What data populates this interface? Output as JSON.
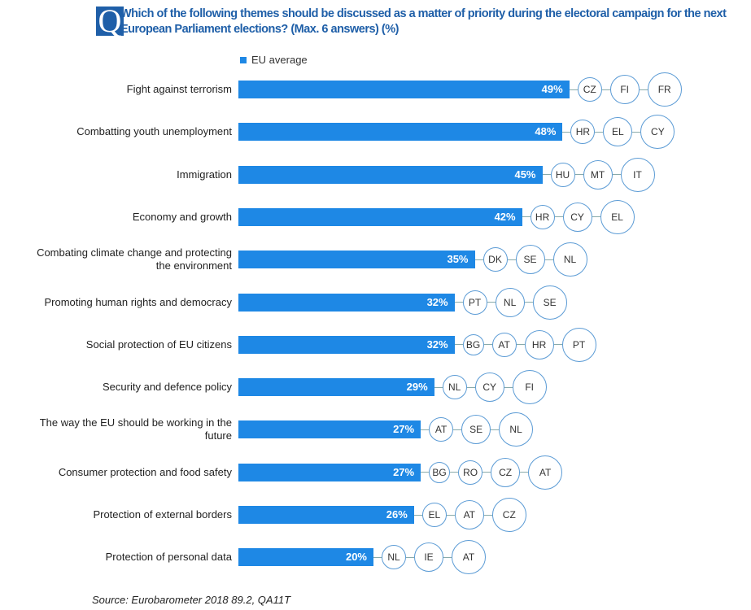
{
  "header": {
    "q_badge": "Q",
    "title": "Which of the following themes should be discussed as a matter of priority during the electoral campaign for the next European Parliament elections? (Max. 6 answers) (%)"
  },
  "source": "Source: Eurobarometer 2018 89.2, QA11T",
  "chart_data": {
    "type": "bar",
    "title": "Which of the following themes should be discussed as a matter of priority during the electoral campaign for the next European Parliament elections? (Max. 6 answers) (%)",
    "legend": [
      "EU average"
    ],
    "legend_placement": "top",
    "bar_color": "#1e88e5",
    "categories": [
      "Fight against terrorism",
      "Combatting youth unemployment",
      "Immigration",
      "Economy and growth",
      "Combating climate change and protecting the environment",
      "Promoting human rights and democracy",
      "Social protection of EU citizens",
      "Security and defence policy",
      "The way the EU should be working in the future",
      "Consumer protection and food safety",
      "Protection of external borders",
      "Protection of personal data"
    ],
    "values": [
      49,
      48,
      45,
      42,
      35,
      32,
      32,
      29,
      27,
      27,
      26,
      20
    ],
    "value_labels": [
      "49%",
      "48%",
      "45%",
      "42%",
      "35%",
      "32%",
      "32%",
      "29%",
      "27%",
      "27%",
      "26%",
      "20%"
    ],
    "top_countries": [
      [
        "CZ",
        "FI",
        "FR"
      ],
      [
        "HR",
        "EL",
        "CY"
      ],
      [
        "HU",
        "MT",
        "IT"
      ],
      [
        "HR",
        "CY",
        "EL"
      ],
      [
        "DK",
        "SE",
        "NL"
      ],
      [
        "PT",
        "NL",
        "SE"
      ],
      [
        "BG",
        "AT",
        "HR",
        "PT"
      ],
      [
        "NL",
        "CY",
        "FI"
      ],
      [
        "AT",
        "SE",
        "NL"
      ],
      [
        "BG",
        "RO",
        "CZ",
        "AT"
      ],
      [
        "EL",
        "AT",
        "CZ"
      ],
      [
        "NL",
        "IE",
        "AT"
      ]
    ],
    "xlim": [
      0,
      100
    ]
  }
}
